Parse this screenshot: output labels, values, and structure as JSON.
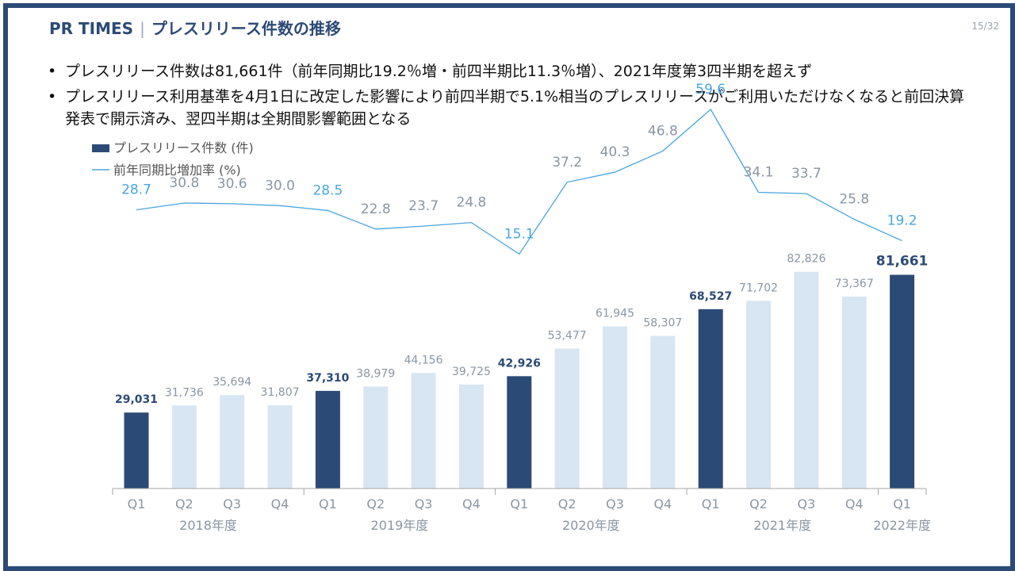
{
  "header": {
    "brand": "PR TIMES",
    "title": "プレスリリース件数の推移",
    "page": "15/32"
  },
  "bullets": [
    "プレスリリース件数は81,661件（前年同期比19.2％増・前四半期比11.3％増）、2021年度第3四半期を超えず",
    "プレスリリース利用基準を4月1日に改定した影響により前四半期で5.1%相当のプレスリリースがご利用いただけなくなると前回決算発表で開示済み、翌四半期は全期間影響範囲となる"
  ],
  "colors": {
    "frame": "#2c4a76",
    "bar_dark": "#2c4a76",
    "bar_light": "#d8e5f3",
    "line": "#49a5de",
    "label_gray": "#8a96a3"
  },
  "chart_data": {
    "type": "bar",
    "legend": [
      "プレスリリース件数 (件)",
      "前年同期比増加率 (%)"
    ],
    "categories": [
      "Q1",
      "Q2",
      "Q3",
      "Q4",
      "Q1",
      "Q2",
      "Q3",
      "Q4",
      "Q1",
      "Q2",
      "Q3",
      "Q4",
      "Q1",
      "Q2",
      "Q3",
      "Q4",
      "Q1"
    ],
    "years": [
      {
        "label": "2018年度",
        "start": 0,
        "end": 3
      },
      {
        "label": "2019年度",
        "start": 4,
        "end": 7
      },
      {
        "label": "2020年度",
        "start": 8,
        "end": 11
      },
      {
        "label": "2021年度",
        "start": 12,
        "end": 15
      },
      {
        "label": "2022年度",
        "start": 16,
        "end": 16
      }
    ],
    "series": [
      {
        "name": "プレスリリース件数 (件)",
        "type": "bar",
        "values": [
          29031,
          31736,
          35694,
          31807,
          37310,
          38979,
          44156,
          39725,
          42926,
          53477,
          61945,
          58307,
          68527,
          71702,
          82826,
          73367,
          81661
        ],
        "labels": [
          "29,031",
          "31,736",
          "35,694",
          "31,807",
          "37,310",
          "38,979",
          "44,156",
          "39,725",
          "42,926",
          "53,477",
          "61,945",
          "58,307",
          "68,527",
          "71,702",
          "82,826",
          "73,367",
          "81,661"
        ],
        "highlight": [
          0,
          4,
          8,
          12,
          16
        ]
      },
      {
        "name": "前年同期比増加率 (%)",
        "type": "line",
        "values": [
          28.7,
          30.8,
          30.6,
          30.0,
          28.5,
          22.8,
          23.7,
          24.8,
          15.1,
          37.2,
          40.3,
          46.8,
          59.6,
          34.1,
          33.7,
          25.8,
          19.2
        ],
        "labels": [
          "28.7",
          "30.8",
          "30.6",
          "30.0",
          "28.5",
          "22.8",
          "23.7",
          "24.8",
          "15.1",
          "37.2",
          "40.3",
          "46.8",
          "59.6",
          "34.1",
          "33.7",
          "25.8",
          "19.2"
        ],
        "highlight": [
          0,
          4,
          8,
          12,
          16
        ]
      }
    ]
  }
}
